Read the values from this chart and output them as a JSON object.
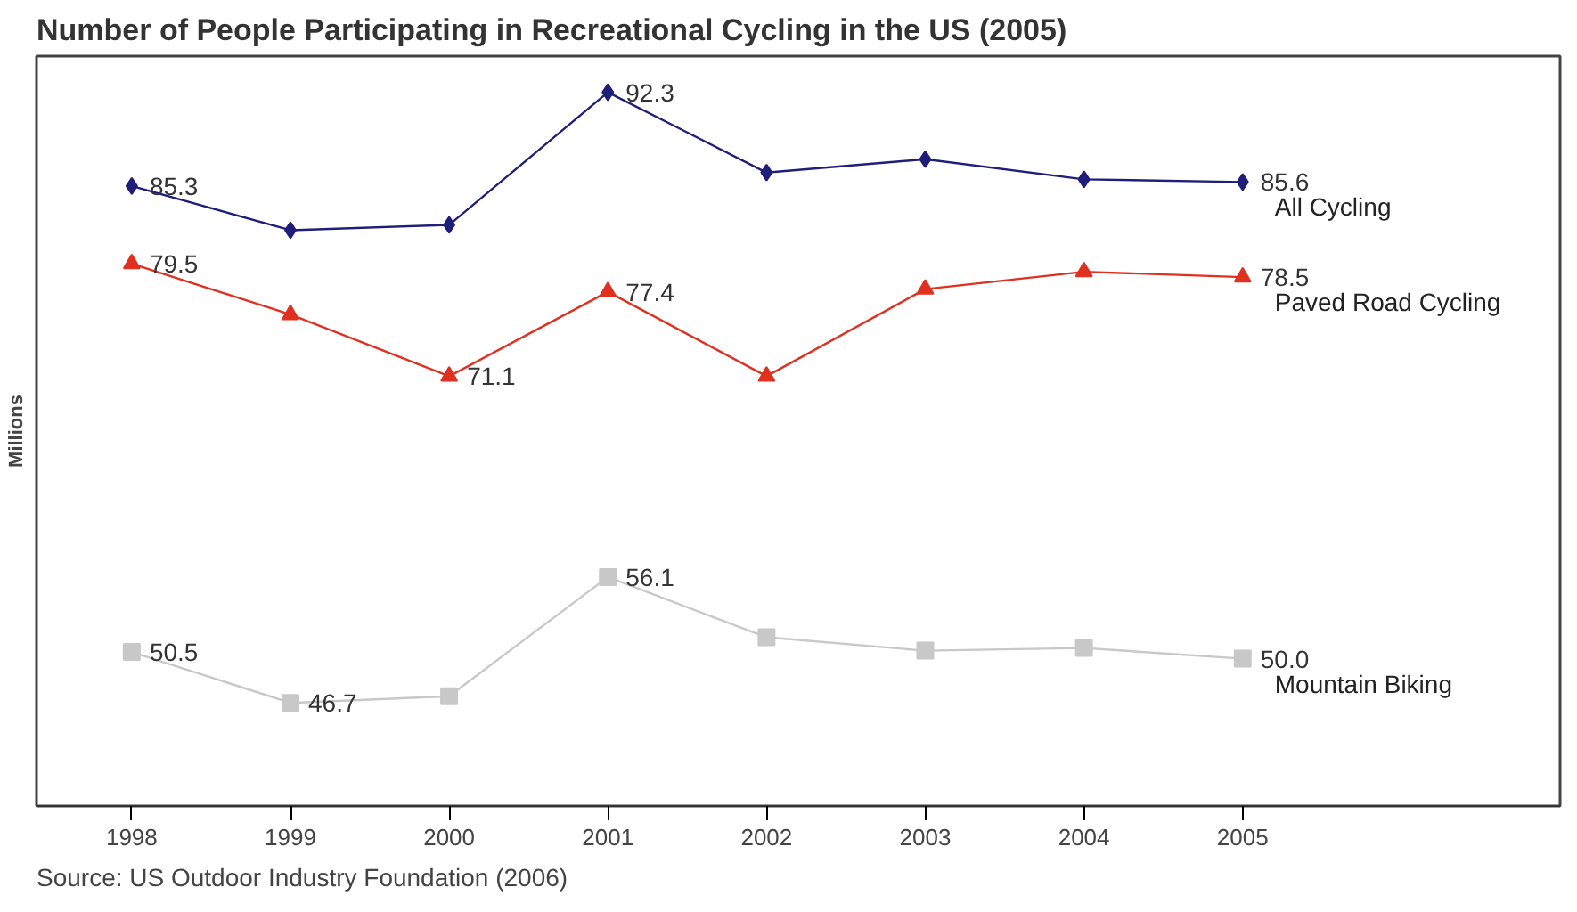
{
  "chart_data": {
    "type": "line",
    "title": "Number of People Participating in Recreational Cycling in the US (2005)",
    "ylabel": "Millions",
    "categories": [
      "1998",
      "1999",
      "2000",
      "2001",
      "2002",
      "2003",
      "2004",
      "2005"
    ],
    "ylim": [
      39,
      95
    ],
    "tick_labels": "x",
    "grid": false,
    "line_style": "solid",
    "series": [
      {
        "name": "All Cycling",
        "color": "#1f1f7a",
        "marker": "diamond",
        "values": [
          85.3,
          82.0,
          82.4,
          92.3,
          86.3,
          87.3,
          85.8,
          85.6
        ],
        "value_labels": [
          "85.3",
          null,
          null,
          "92.3",
          null,
          null,
          null,
          "85.6"
        ]
      },
      {
        "name": "Paved Road Cycling",
        "color": "#e03020",
        "marker": "triangle",
        "values": [
          79.5,
          75.7,
          71.1,
          77.4,
          71.1,
          77.6,
          78.9,
          78.5
        ],
        "value_labels": [
          "79.5",
          null,
          "71.1",
          "77.4",
          null,
          null,
          null,
          "78.5"
        ]
      },
      {
        "name": "Mountain Biking",
        "color": "#c8c8c8",
        "marker": "square",
        "values": [
          50.5,
          46.7,
          47.2,
          56.1,
          51.6,
          50.6,
          50.8,
          50.0
        ],
        "value_labels": [
          "50.5",
          "46.7",
          null,
          "56.1",
          null,
          null,
          null,
          "50.0"
        ]
      }
    ],
    "annotations": [
      "Source: US Outdoor Industry Foundation (2006)"
    ]
  }
}
